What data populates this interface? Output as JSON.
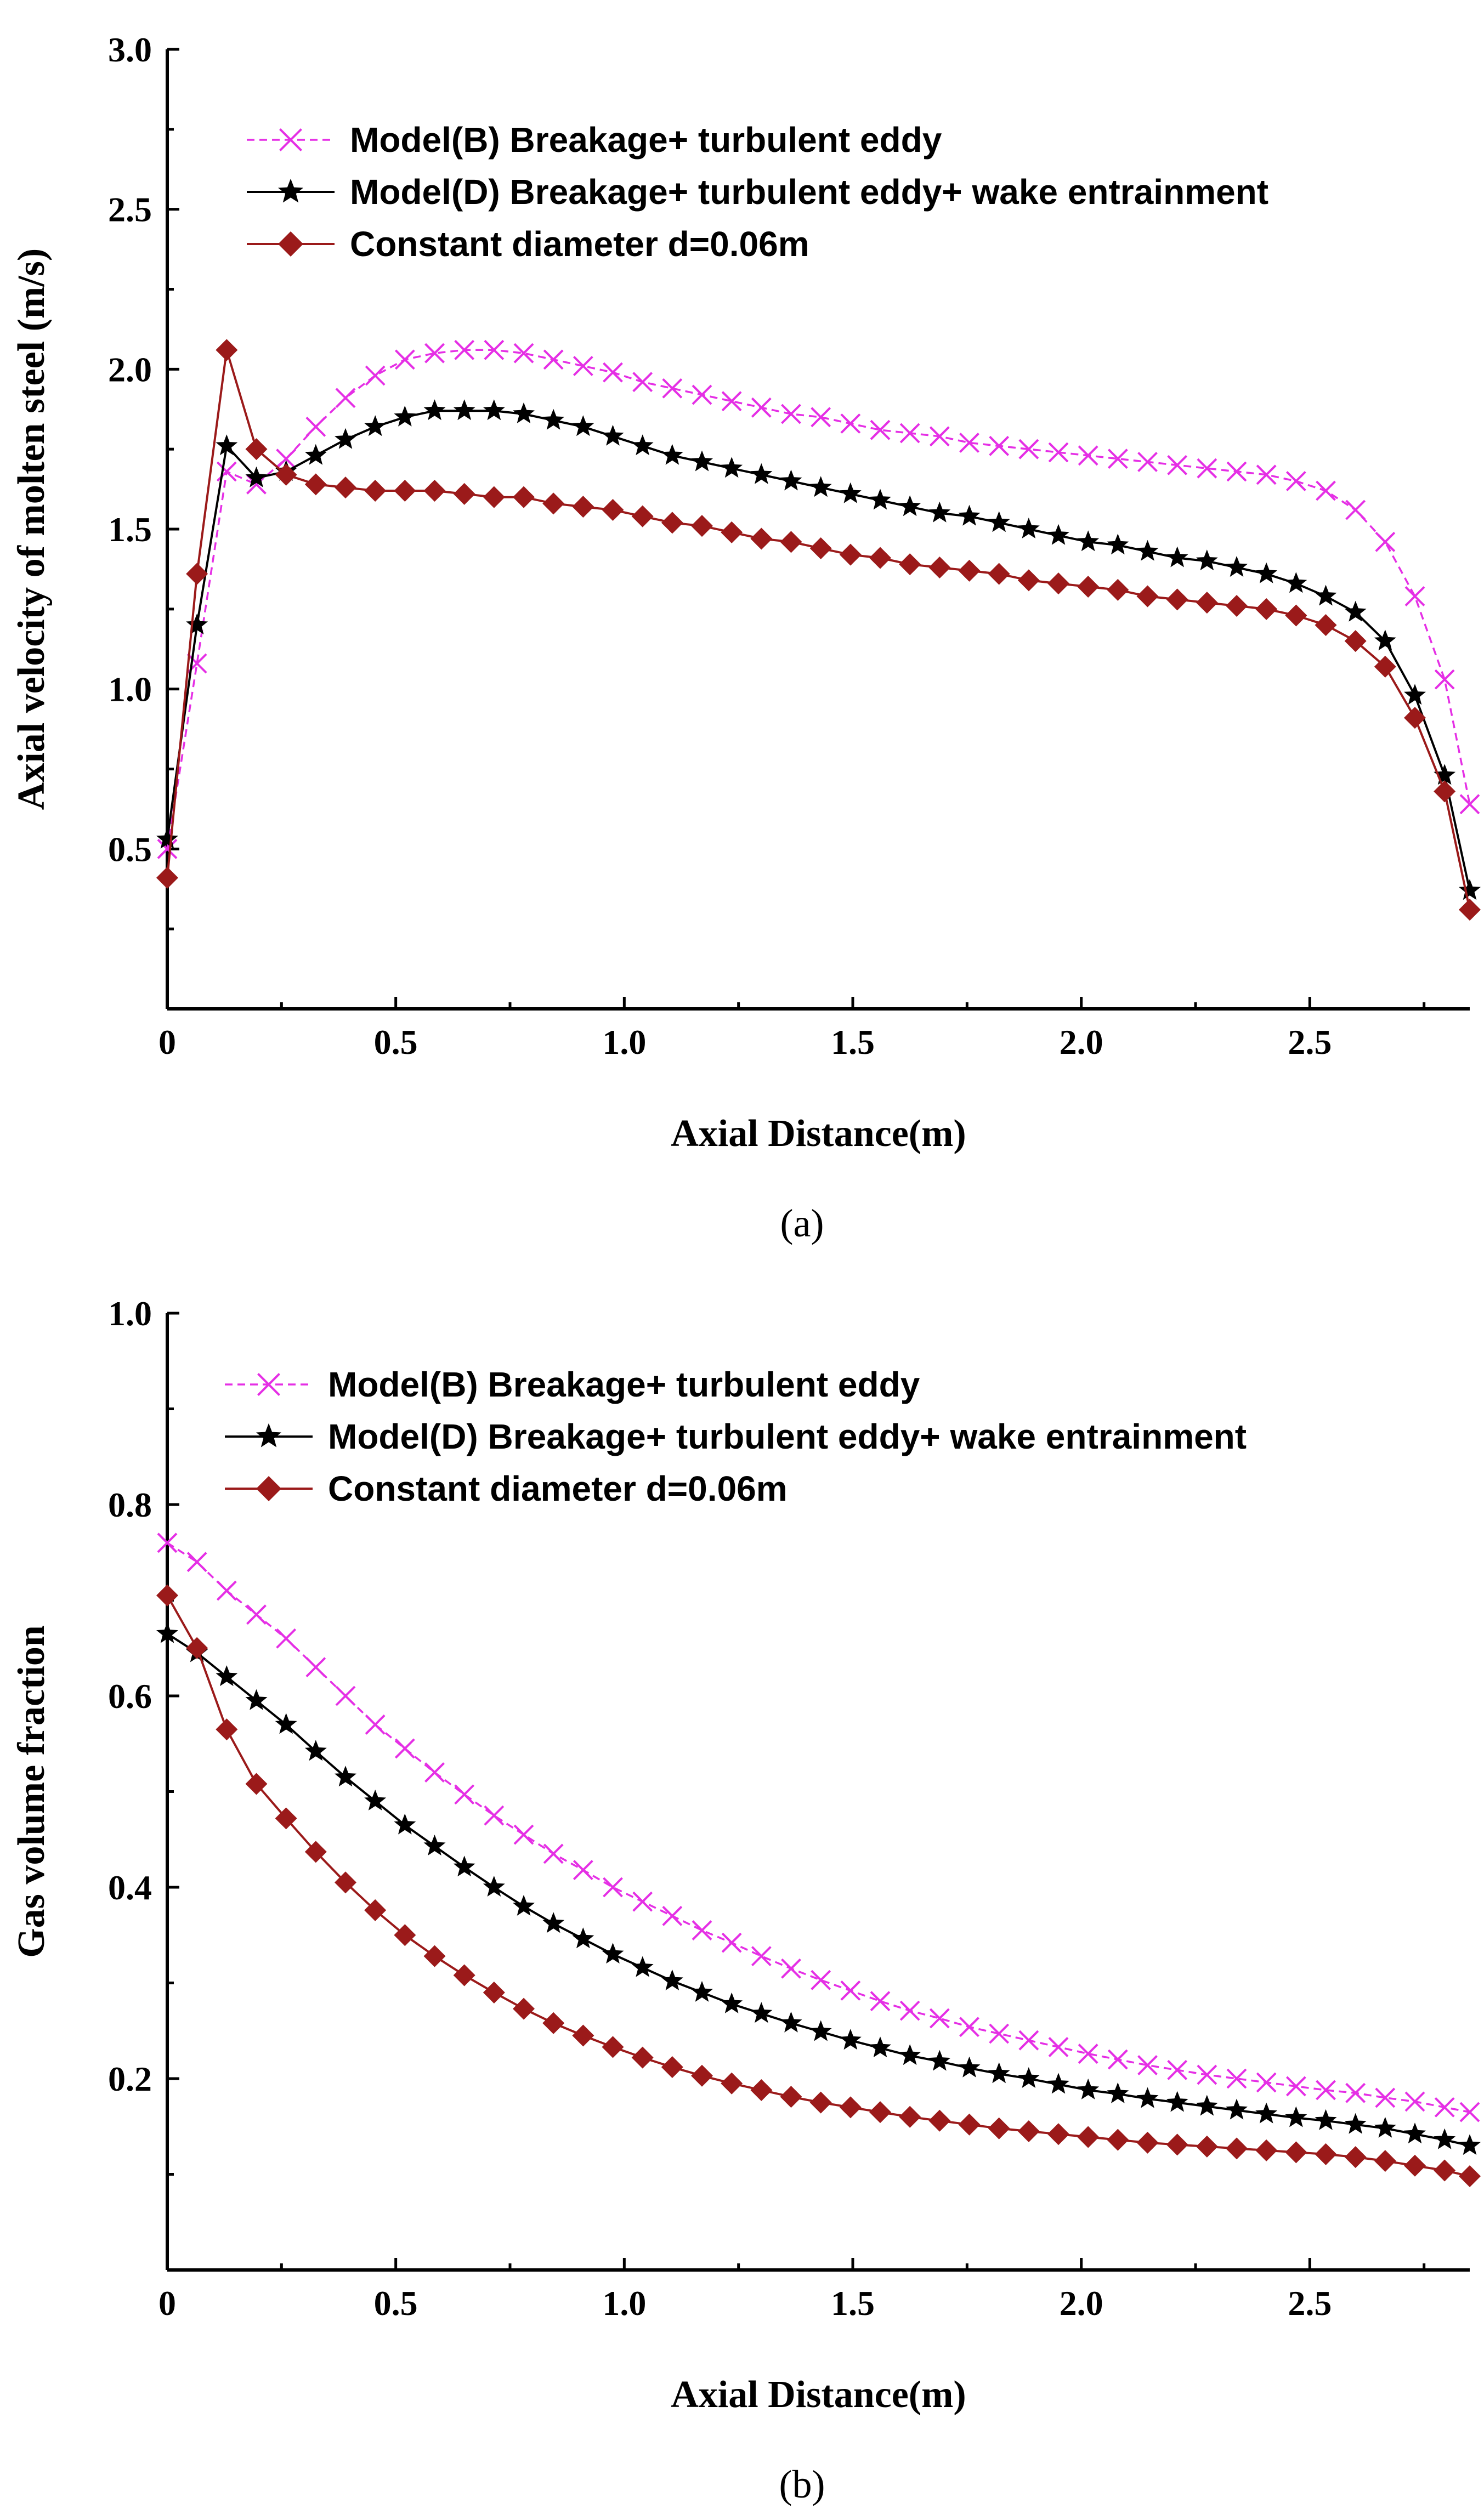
{
  "chart_data": [
    {
      "type": "line",
      "panel": "a",
      "caption": "(a)",
      "xlabel": "Axial Distance(m)",
      "ylabel": "Axial velocity of molten steel (m/s)",
      "xlim": [
        0,
        2.85
      ],
      "ylim": [
        0,
        3.0
      ],
      "xticks": [
        0,
        0.5,
        1.0,
        1.5,
        2.0,
        2.5
      ],
      "xtick_labels": [
        "0",
        "0.5",
        "1.0",
        "1.5",
        "2.0",
        "2.5"
      ],
      "yticks": [
        0.5,
        1.0,
        1.5,
        2.0,
        2.5,
        3.0
      ],
      "ytick_labels": [
        "0.5",
        "1.0",
        "1.5",
        "2.0",
        "2.5",
        "3.0"
      ],
      "legend_position": "top-left",
      "series": [
        {
          "name": "Model(B) Breakage+ turbulent eddy",
          "color": "#e52fe5",
          "marker": "x",
          "dashed": true,
          "x": [
            0.0,
            0.065,
            0.13,
            0.195,
            0.26,
            0.325,
            0.39,
            0.455,
            0.52,
            0.585,
            0.65,
            0.715,
            0.78,
            0.845,
            0.91,
            0.975,
            1.04,
            1.105,
            1.17,
            1.235,
            1.3,
            1.365,
            1.43,
            1.495,
            1.56,
            1.625,
            1.69,
            1.755,
            1.82,
            1.885,
            1.95,
            2.015,
            2.08,
            2.145,
            2.21,
            2.275,
            2.34,
            2.405,
            2.47,
            2.535,
            2.6,
            2.665,
            2.73,
            2.795,
            2.85
          ],
          "y": [
            0.5,
            1.08,
            1.68,
            1.64,
            1.72,
            1.82,
            1.91,
            1.98,
            2.03,
            2.05,
            2.06,
            2.06,
            2.05,
            2.03,
            2.01,
            1.99,
            1.96,
            1.94,
            1.92,
            1.9,
            1.88,
            1.86,
            1.85,
            1.83,
            1.81,
            1.8,
            1.79,
            1.77,
            1.76,
            1.75,
            1.74,
            1.73,
            1.72,
            1.71,
            1.7,
            1.69,
            1.68,
            1.67,
            1.65,
            1.62,
            1.56,
            1.46,
            1.29,
            1.03,
            0.64
          ]
        },
        {
          "name": "Model(D) Breakage+ turbulent eddy+ wake entrainment",
          "color": "#000000",
          "marker": "star",
          "dashed": false,
          "x": [
            0.0,
            0.065,
            0.13,
            0.195,
            0.26,
            0.325,
            0.39,
            0.455,
            0.52,
            0.585,
            0.65,
            0.715,
            0.78,
            0.845,
            0.91,
            0.975,
            1.04,
            1.105,
            1.17,
            1.235,
            1.3,
            1.365,
            1.43,
            1.495,
            1.56,
            1.625,
            1.69,
            1.755,
            1.82,
            1.885,
            1.95,
            2.015,
            2.08,
            2.145,
            2.21,
            2.275,
            2.34,
            2.405,
            2.47,
            2.535,
            2.6,
            2.665,
            2.73,
            2.795,
            2.85
          ],
          "y": [
            0.53,
            1.2,
            1.76,
            1.66,
            1.68,
            1.73,
            1.78,
            1.82,
            1.85,
            1.87,
            1.87,
            1.87,
            1.86,
            1.84,
            1.82,
            1.79,
            1.76,
            1.73,
            1.71,
            1.69,
            1.67,
            1.65,
            1.63,
            1.61,
            1.59,
            1.57,
            1.55,
            1.54,
            1.52,
            1.5,
            1.48,
            1.46,
            1.45,
            1.43,
            1.41,
            1.4,
            1.38,
            1.36,
            1.33,
            1.29,
            1.24,
            1.15,
            0.98,
            0.73,
            0.37
          ]
        },
        {
          "name": "Constant diameter d=0.06m",
          "color": "#9b1a1a",
          "marker": "diamond",
          "dashed": false,
          "x": [
            0.0,
            0.065,
            0.13,
            0.195,
            0.26,
            0.325,
            0.39,
            0.455,
            0.52,
            0.585,
            0.65,
            0.715,
            0.78,
            0.845,
            0.91,
            0.975,
            1.04,
            1.105,
            1.17,
            1.235,
            1.3,
            1.365,
            1.43,
            1.495,
            1.56,
            1.625,
            1.69,
            1.755,
            1.82,
            1.885,
            1.95,
            2.015,
            2.08,
            2.145,
            2.21,
            2.275,
            2.34,
            2.405,
            2.47,
            2.535,
            2.6,
            2.665,
            2.73,
            2.795,
            2.85
          ],
          "y": [
            0.41,
            1.36,
            2.06,
            1.75,
            1.67,
            1.64,
            1.63,
            1.62,
            1.62,
            1.62,
            1.61,
            1.6,
            1.6,
            1.58,
            1.57,
            1.56,
            1.54,
            1.52,
            1.51,
            1.49,
            1.47,
            1.46,
            1.44,
            1.42,
            1.41,
            1.39,
            1.38,
            1.37,
            1.36,
            1.34,
            1.33,
            1.32,
            1.31,
            1.29,
            1.28,
            1.27,
            1.26,
            1.25,
            1.23,
            1.2,
            1.15,
            1.07,
            0.91,
            0.68,
            0.31
          ]
        }
      ]
    },
    {
      "type": "line",
      "panel": "b",
      "caption": "(b)",
      "xlabel": "Axial Distance(m)",
      "ylabel": "Gas volume fraction",
      "xlim": [
        0,
        2.85
      ],
      "ylim": [
        0,
        1.0
      ],
      "xticks": [
        0,
        0.5,
        1.0,
        1.5,
        2.0,
        2.5
      ],
      "xtick_labels": [
        "0",
        "0.5",
        "1.0",
        "1.5",
        "2.0",
        "2.5"
      ],
      "yticks": [
        0.2,
        0.4,
        0.6,
        0.8,
        1.0
      ],
      "ytick_labels": [
        "0.2",
        "0.4",
        "0.6",
        "0.8",
        "1.0"
      ],
      "legend_position": "top-center",
      "series": [
        {
          "name": "Model(B) Breakage+ turbulent eddy",
          "color": "#e52fe5",
          "marker": "x",
          "dashed": true,
          "x": [
            0.0,
            0.065,
            0.13,
            0.195,
            0.26,
            0.325,
            0.39,
            0.455,
            0.52,
            0.585,
            0.65,
            0.715,
            0.78,
            0.845,
            0.91,
            0.975,
            1.04,
            1.105,
            1.17,
            1.235,
            1.3,
            1.365,
            1.43,
            1.495,
            1.56,
            1.625,
            1.69,
            1.755,
            1.82,
            1.885,
            1.95,
            2.015,
            2.08,
            2.145,
            2.21,
            2.275,
            2.34,
            2.405,
            2.47,
            2.535,
            2.6,
            2.665,
            2.73,
            2.795,
            2.85
          ],
          "y": [
            0.76,
            0.74,
            0.71,
            0.685,
            0.66,
            0.63,
            0.6,
            0.57,
            0.545,
            0.52,
            0.497,
            0.475,
            0.455,
            0.435,
            0.418,
            0.4,
            0.385,
            0.37,
            0.355,
            0.342,
            0.328,
            0.315,
            0.303,
            0.292,
            0.281,
            0.271,
            0.263,
            0.254,
            0.247,
            0.24,
            0.233,
            0.226,
            0.22,
            0.214,
            0.209,
            0.204,
            0.2,
            0.196,
            0.192,
            0.188,
            0.185,
            0.18,
            0.176,
            0.17,
            0.165
          ]
        },
        {
          "name": "Model(D) Breakage+ turbulent eddy+ wake entrainment",
          "color": "#000000",
          "marker": "star",
          "dashed": false,
          "x": [
            0.0,
            0.065,
            0.13,
            0.195,
            0.26,
            0.325,
            0.39,
            0.455,
            0.52,
            0.585,
            0.65,
            0.715,
            0.78,
            0.845,
            0.91,
            0.975,
            1.04,
            1.105,
            1.17,
            1.235,
            1.3,
            1.365,
            1.43,
            1.495,
            1.56,
            1.625,
            1.69,
            1.755,
            1.82,
            1.885,
            1.95,
            2.015,
            2.08,
            2.145,
            2.21,
            2.275,
            2.34,
            2.405,
            2.47,
            2.535,
            2.6,
            2.665,
            2.73,
            2.795,
            2.85
          ],
          "y": [
            0.665,
            0.645,
            0.62,
            0.595,
            0.57,
            0.542,
            0.515,
            0.49,
            0.465,
            0.443,
            0.421,
            0.4,
            0.38,
            0.362,
            0.346,
            0.33,
            0.316,
            0.302,
            0.29,
            0.278,
            0.268,
            0.258,
            0.249,
            0.24,
            0.232,
            0.224,
            0.218,
            0.211,
            0.205,
            0.2,
            0.194,
            0.188,
            0.184,
            0.179,
            0.175,
            0.171,
            0.167,
            0.163,
            0.159,
            0.156,
            0.152,
            0.148,
            0.142,
            0.136,
            0.13
          ]
        },
        {
          "name": "Constant diameter d=0.06m",
          "color": "#9b1a1a",
          "marker": "diamond",
          "dashed": false,
          "x": [
            0.0,
            0.065,
            0.13,
            0.195,
            0.26,
            0.325,
            0.39,
            0.455,
            0.52,
            0.585,
            0.65,
            0.715,
            0.78,
            0.845,
            0.91,
            0.975,
            1.04,
            1.105,
            1.17,
            1.235,
            1.3,
            1.365,
            1.43,
            1.495,
            1.56,
            1.625,
            1.69,
            1.755,
            1.82,
            1.885,
            1.95,
            2.015,
            2.08,
            2.145,
            2.21,
            2.275,
            2.34,
            2.405,
            2.47,
            2.535,
            2.6,
            2.665,
            2.73,
            2.795,
            2.85
          ],
          "y": [
            0.705,
            0.65,
            0.565,
            0.508,
            0.472,
            0.437,
            0.405,
            0.376,
            0.35,
            0.328,
            0.308,
            0.29,
            0.273,
            0.258,
            0.245,
            0.233,
            0.222,
            0.212,
            0.203,
            0.195,
            0.188,
            0.181,
            0.175,
            0.17,
            0.165,
            0.16,
            0.156,
            0.152,
            0.148,
            0.145,
            0.142,
            0.139,
            0.136,
            0.133,
            0.131,
            0.129,
            0.127,
            0.125,
            0.123,
            0.121,
            0.118,
            0.114,
            0.109,
            0.104,
            0.098
          ]
        }
      ]
    }
  ]
}
